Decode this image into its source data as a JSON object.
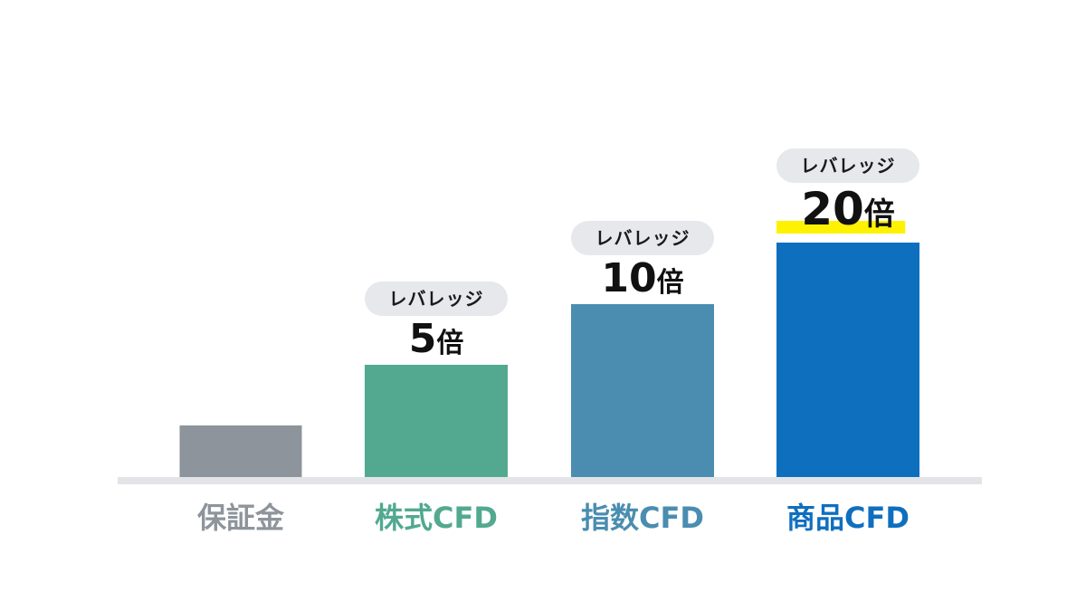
{
  "chart_data": {
    "type": "bar",
    "categories": [
      "保証金",
      "株式CFD",
      "指数CFD",
      "商品CFD"
    ],
    "values": [
      1,
      5,
      10,
      20
    ],
    "leverage_pill_label": "レバレッジ",
    "value_labels": [
      null,
      {
        "number": "5",
        "unit": "倍"
      },
      {
        "number": "10",
        "unit": "倍"
      },
      {
        "number": "20",
        "unit": "倍"
      }
    ],
    "bar_colors": [
      "#8e949b",
      "#52a98f",
      "#4a8db0",
      "#0f6fbf"
    ],
    "label_colors": [
      "#8e949b",
      "#52a98f",
      "#4a8db0",
      "#0f6fbf"
    ],
    "baseline_color": "#e2e4e7",
    "pill_color": "#e6e8ec",
    "highlight_color": "#fff200",
    "highlight_bar_index": 3
  }
}
